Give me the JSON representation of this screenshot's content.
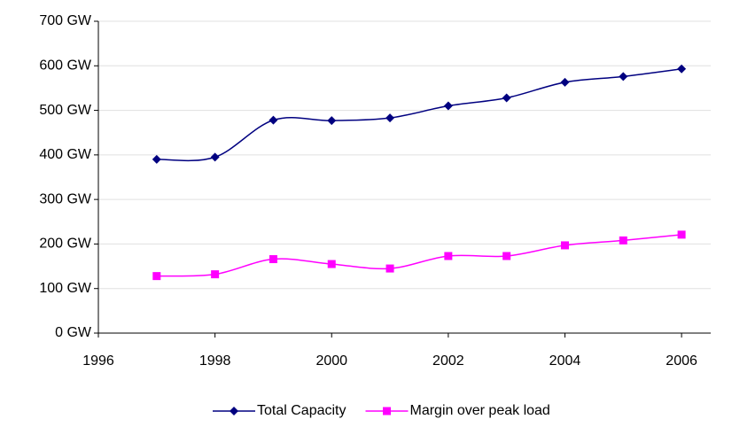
{
  "chart_data": {
    "type": "line",
    "x": [
      1997,
      1998,
      1999,
      2000,
      2001,
      2002,
      2003,
      2004,
      2005,
      2006
    ],
    "series": [
      {
        "name": "Total Capacity",
        "color": "#000080",
        "marker": "diamond",
        "values": [
          390,
          395,
          478,
          477,
          483,
          510,
          528,
          563,
          576,
          593
        ]
      },
      {
        "name": "Margin over peak load",
        "color": "#ff00ff",
        "marker": "square",
        "values": [
          128,
          132,
          166,
          155,
          145,
          173,
          173,
          197,
          208,
          221
        ]
      }
    ],
    "xlim": [
      1996,
      2006.5
    ],
    "xticks": [
      1996,
      1998,
      2000,
      2002,
      2004,
      2006
    ],
    "ylim": [
      0,
      700
    ],
    "yticks": [
      {
        "value": 0,
        "label": "0 GW"
      },
      {
        "value": 100,
        "label": "100 GW"
      },
      {
        "value": 200,
        "label": "200 GW"
      },
      {
        "value": 300,
        "label": "300 GW"
      },
      {
        "value": 400,
        "label": "400 GW"
      },
      {
        "value": 500,
        "label": "500 GW"
      },
      {
        "value": 600,
        "label": "600 GW"
      },
      {
        "value": 700,
        "label": "700 GW"
      }
    ],
    "grid": true,
    "smooth": true,
    "legend": "bottom"
  }
}
